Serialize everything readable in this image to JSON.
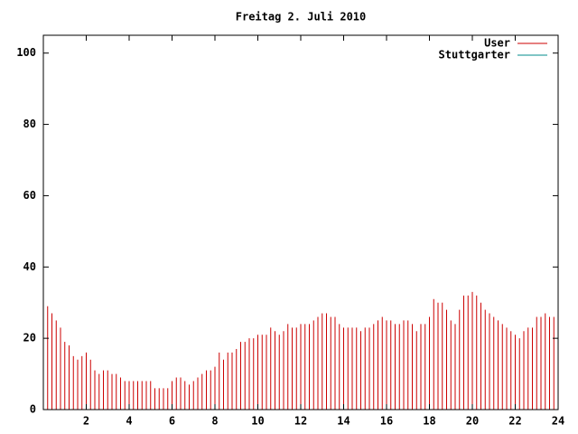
{
  "chart_data": {
    "type": "impulse",
    "title": "Freitag 2. Juli 2010",
    "x": [
      0,
      0.2,
      0.4,
      0.6,
      0.8,
      1,
      1.2,
      1.4,
      1.6,
      1.8,
      2,
      2.2,
      2.4,
      2.6,
      2.8,
      3,
      3.2,
      3.4,
      3.6,
      3.8,
      4,
      4.2,
      4.4,
      4.6,
      4.8,
      5,
      5.2,
      5.4,
      5.6,
      5.8,
      6,
      6.2,
      6.4,
      6.6,
      6.8,
      7,
      7.2,
      7.4,
      7.6,
      7.8,
      8,
      8.2,
      8.4,
      8.6,
      8.8,
      9,
      9.2,
      9.4,
      9.6,
      9.8,
      10,
      10.2,
      10.4,
      10.6,
      10.8,
      11,
      11.2,
      11.4,
      11.6,
      11.8,
      12,
      12.2,
      12.4,
      12.6,
      12.8,
      13,
      13.2,
      13.4,
      13.6,
      13.8,
      14,
      14.2,
      14.4,
      14.6,
      14.8,
      15,
      15.2,
      15.4,
      15.6,
      15.8,
      16,
      16.2,
      16.4,
      16.6,
      16.8,
      17,
      17.2,
      17.4,
      17.6,
      17.8,
      18,
      18.2,
      18.4,
      18.6,
      18.8,
      19,
      19.2,
      19.4,
      19.6,
      19.8,
      20,
      20.2,
      20.4,
      20.6,
      20.8,
      21,
      21.2,
      21.4,
      21.6,
      21.8,
      22,
      22.2,
      22.4,
      22.6,
      22.8,
      23,
      23.2,
      23.4,
      23.6,
      23.8
    ],
    "series": [
      {
        "name": "User",
        "color": "#cc0000",
        "values": [
          29,
          29,
          27,
          25,
          23,
          19,
          18,
          15,
          14,
          15,
          16,
          14,
          11,
          10,
          11,
          11,
          10,
          10,
          9,
          8,
          8,
          8,
          8,
          8,
          8,
          8,
          6,
          6,
          6,
          6,
          8,
          9,
          9,
          8,
          7,
          8,
          9,
          10,
          11,
          11,
          12,
          16,
          14,
          16,
          16,
          17,
          19,
          19,
          20,
          20,
          21,
          21,
          21,
          23,
          22,
          21,
          22,
          24,
          23,
          23,
          24,
          24,
          24,
          25,
          26,
          27,
          27,
          26,
          26,
          24,
          23,
          23,
          23,
          23,
          22,
          23,
          23,
          24,
          25,
          26,
          25,
          25,
          24,
          24,
          25,
          25,
          24,
          22,
          24,
          24,
          26,
          31,
          30,
          30,
          28,
          25,
          24,
          28,
          32,
          32,
          33,
          32,
          30,
          28,
          27,
          26,
          25,
          24,
          23,
          22,
          21,
          20,
          22,
          23,
          23,
          26,
          26,
          27,
          26,
          26
        ]
      },
      {
        "name": "Stuttgarter",
        "color": "#008b8b",
        "values": [
          null,
          null,
          null,
          null,
          null,
          null,
          null,
          null,
          null,
          null,
          null,
          null,
          null,
          null,
          null,
          null,
          null,
          null,
          null,
          null,
          null,
          null,
          null,
          null,
          null,
          null,
          null,
          null,
          null,
          null,
          null,
          null,
          null,
          null,
          null,
          null,
          null,
          null,
          null,
          null,
          null,
          null,
          null,
          null,
          null,
          null,
          null,
          null,
          null,
          null,
          null,
          null,
          null,
          null,
          null,
          null,
          null,
          null,
          null,
          null,
          null,
          null,
          null,
          null,
          null,
          null,
          null,
          null,
          null,
          null,
          null,
          null,
          null,
          null,
          null,
          null,
          null,
          null,
          null,
          null,
          null,
          null,
          null,
          null,
          null,
          null,
          null,
          null,
          null,
          null,
          null,
          null,
          null,
          null,
          null,
          null,
          null,
          null,
          null,
          null,
          null,
          null,
          null,
          null,
          null,
          null,
          null,
          null,
          null,
          null,
          null,
          null,
          null,
          null,
          null,
          null,
          null,
          null,
          null,
          null
        ]
      }
    ],
    "xlim": [
      0,
      24
    ],
    "xticks": [
      2,
      4,
      6,
      8,
      10,
      12,
      14,
      16,
      18,
      20,
      22,
      24
    ],
    "ylim": [
      0,
      105
    ],
    "yticks": [
      0,
      20,
      40,
      60,
      80,
      100
    ],
    "grid": false,
    "legend": "top-right"
  }
}
